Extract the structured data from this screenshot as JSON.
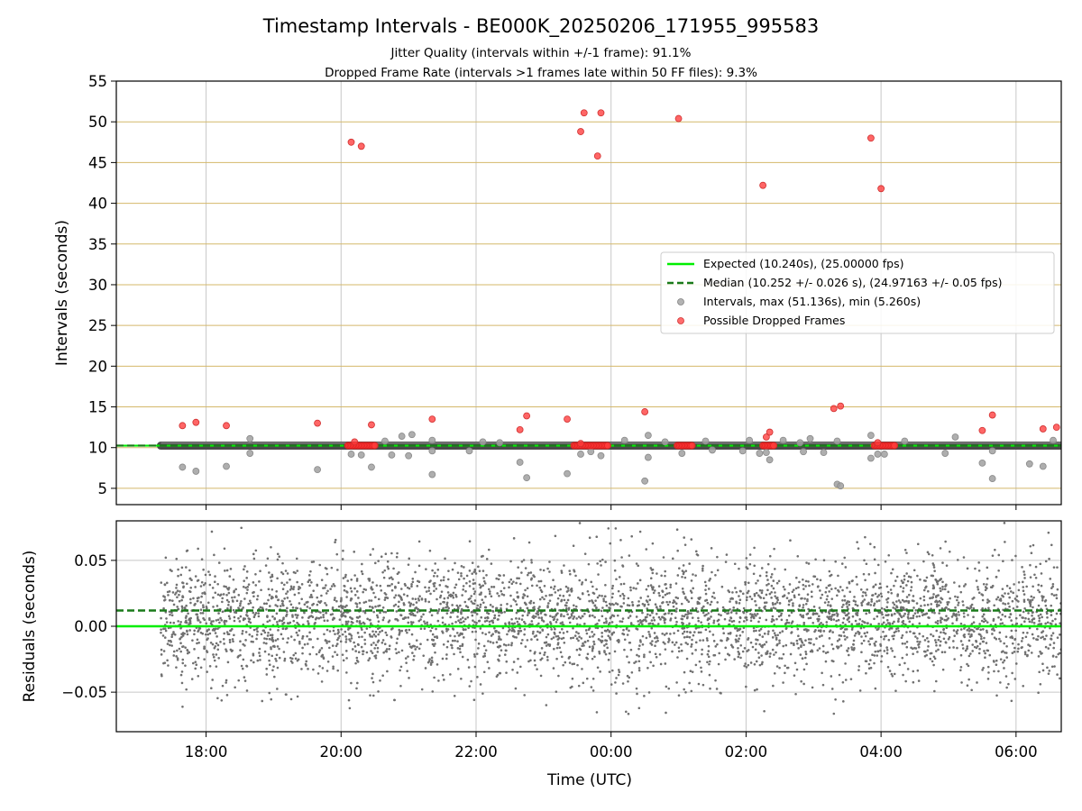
{
  "chart_data": [
    {
      "type": "scatter",
      "panel": "intervals",
      "title": "Timestamp Intervals - BE000K_20250206_171955_995583",
      "subtitle_lines": [
        "Jitter Quality (intervals within +/-1 frame): 91.1%",
        "Dropped Frame Rate (intervals >1 frames late within 50 FF files): 9.3%"
      ],
      "ylabel": "Intervals (seconds)",
      "xlabel": "",
      "x_range_hours": [
        16.67,
        30.67
      ],
      "ylim": [
        3,
        55
      ],
      "y_ticks": [
        5,
        10,
        15,
        20,
        25,
        30,
        35,
        40,
        45,
        50,
        55
      ],
      "y_tick_labels": [
        "5",
        "10",
        "15",
        "20",
        "25",
        "30",
        "35",
        "40",
        "45",
        "50",
        "55"
      ],
      "grid": true,
      "legend_position": "center-right",
      "series": [
        {
          "name": "Expected (10.240s), (25.00000 fps)",
          "kind": "hline",
          "y": 10.24,
          "color": "#00ee00"
        },
        {
          "name": "Median (10.252 +/- 0.026 s), (24.97163 +/- 0.05 fps)",
          "kind": "hline-dashed",
          "y": 10.252,
          "color": "#1a7a1a"
        },
        {
          "name": "Intervals, max (51.136s), min (5.260s)",
          "kind": "scatter",
          "color": "#a0a0a0",
          "band": {
            "x_start": 17.33,
            "x_end": 30.67,
            "y": 10.24
          },
          "points": [
            [
              17.65,
              7.6
            ],
            [
              17.85,
              7.1
            ],
            [
              18.3,
              7.7
            ],
            [
              18.65,
              11.1
            ],
            [
              18.65,
              9.3
            ],
            [
              19.65,
              7.3
            ],
            [
              20.15,
              9.2
            ],
            [
              20.3,
              9.1
            ],
            [
              20.45,
              7.6
            ],
            [
              20.65,
              10.8
            ],
            [
              20.75,
              9.1
            ],
            [
              20.9,
              11.4
            ],
            [
              21.0,
              9.0
            ],
            [
              21.05,
              11.6
            ],
            [
              21.35,
              9.6
            ],
            [
              21.35,
              10.9
            ],
            [
              21.35,
              6.7
            ],
            [
              21.9,
              9.6
            ],
            [
              22.1,
              10.7
            ],
            [
              22.35,
              10.6
            ],
            [
              22.65,
              8.2
            ],
            [
              22.75,
              6.3
            ],
            [
              23.35,
              6.8
            ],
            [
              23.55,
              9.2
            ],
            [
              23.7,
              9.5
            ],
            [
              23.85,
              9.0
            ],
            [
              24.2,
              10.9
            ],
            [
              24.5,
              5.9
            ],
            [
              24.55,
              8.8
            ],
            [
              24.55,
              11.5
            ],
            [
              24.8,
              10.7
            ],
            [
              25.05,
              9.3
            ],
            [
              25.4,
              10.8
            ],
            [
              25.5,
              9.7
            ],
            [
              25.95,
              9.6
            ],
            [
              26.05,
              10.9
            ],
            [
              26.2,
              9.3
            ],
            [
              26.3,
              9.4
            ],
            [
              26.35,
              8.5
            ],
            [
              26.55,
              10.9
            ],
            [
              26.8,
              10.6
            ],
            [
              26.85,
              9.5
            ],
            [
              26.95,
              11.1
            ],
            [
              27.15,
              9.4
            ],
            [
              27.35,
              10.8
            ],
            [
              27.35,
              5.5
            ],
            [
              27.4,
              5.3
            ],
            [
              27.85,
              11.5
            ],
            [
              27.85,
              8.7
            ],
            [
              27.95,
              9.2
            ],
            [
              28.05,
              9.2
            ],
            [
              28.35,
              10.8
            ],
            [
              28.95,
              9.3
            ],
            [
              29.1,
              11.3
            ],
            [
              29.5,
              8.1
            ],
            [
              29.65,
              6.2
            ],
            [
              29.65,
              9.6
            ],
            [
              30.2,
              8.0
            ],
            [
              30.4,
              7.7
            ],
            [
              30.55,
              10.9
            ]
          ]
        },
        {
          "name": "Possible Dropped Frames",
          "kind": "scatter",
          "color": "#ff3b3b",
          "points": [
            [
              17.65,
              12.7
            ],
            [
              17.85,
              13.1
            ],
            [
              18.3,
              12.7
            ],
            [
              19.65,
              13.0
            ],
            [
              20.15,
              47.5
            ],
            [
              20.3,
              47.0
            ],
            [
              20.45,
              12.8
            ],
            [
              21.35,
              13.5
            ],
            [
              22.65,
              12.2
            ],
            [
              22.75,
              13.9
            ],
            [
              23.35,
              13.5
            ],
            [
              23.6,
              51.1
            ],
            [
              23.55,
              48.8
            ],
            [
              23.8,
              45.8
            ],
            [
              23.85,
              51.1
            ],
            [
              24.5,
              14.4
            ],
            [
              25.0,
              50.4
            ],
            [
              26.25,
              42.2
            ],
            [
              26.3,
              11.3
            ],
            [
              26.35,
              11.9
            ],
            [
              27.3,
              14.8
            ],
            [
              27.4,
              15.1
            ],
            [
              27.85,
              48.0
            ],
            [
              28.0,
              41.8
            ],
            [
              29.5,
              12.1
            ],
            [
              29.65,
              14.0
            ],
            [
              30.4,
              12.3
            ],
            [
              30.6,
              12.5
            ],
            [
              20.2,
              10.7
            ],
            [
              23.55,
              10.5
            ],
            [
              27.95,
              10.6
            ]
          ],
          "clusters": [
            {
              "x_start": 20.1,
              "x_end": 20.5,
              "y": 10.25
            },
            {
              "x_start": 23.45,
              "x_end": 23.95,
              "y": 10.25
            },
            {
              "x_start": 24.98,
              "x_end": 25.2,
              "y": 10.25
            },
            {
              "x_start": 26.25,
              "x_end": 26.42,
              "y": 10.25
            },
            {
              "x_start": 27.9,
              "x_end": 28.2,
              "y": 10.25
            }
          ]
        }
      ]
    },
    {
      "type": "scatter",
      "panel": "residuals",
      "ylabel": "Residuals (seconds)",
      "xlabel": "Time (UTC)",
      "x_range_hours": [
        16.67,
        30.67
      ],
      "ylim": [
        -0.08,
        0.08
      ],
      "y_ticks": [
        -0.05,
        0.0,
        0.05
      ],
      "y_tick_labels": [
        "−0.05",
        "0.00",
        "0.05"
      ],
      "x_ticks_hours": [
        18,
        20,
        22,
        24,
        26,
        28,
        30
      ],
      "x_tick_labels": [
        "18:00",
        "20:00",
        "22:00",
        "00:00",
        "02:00",
        "04:00",
        "06:00"
      ],
      "grid": true,
      "series": [
        {
          "name": "Expected",
          "kind": "hline",
          "y": 0.0,
          "color": "#00ee00"
        },
        {
          "name": "Median",
          "kind": "hline-dashed",
          "y": 0.012,
          "color": "#1a7a1a"
        },
        {
          "name": "Residuals",
          "kind": "scatter-dense",
          "color": "#707070",
          "x_start": 17.33,
          "x_end": 30.67,
          "center": 0.012,
          "spread": 0.022,
          "count": 4200
        }
      ]
    }
  ],
  "legend": {
    "items": [
      {
        "label": "Expected (10.240s), (25.00000 fps)",
        "marker": "line",
        "color": "#00ee00"
      },
      {
        "label": "Median (10.252 +/- 0.026 s), (24.97163 +/- 0.05 fps)",
        "marker": "dashed",
        "color": "#1a7a1a"
      },
      {
        "label": "Intervals, max (51.136s), min (5.260s)",
        "marker": "dot",
        "color": "#a0a0a0"
      },
      {
        "label": "Possible Dropped Frames",
        "marker": "dot",
        "color": "#ff3b3b"
      }
    ]
  },
  "colors": {
    "hgrid": "#d4b86a",
    "vgrid": "#c8c8c8",
    "axis": "#000000"
  }
}
